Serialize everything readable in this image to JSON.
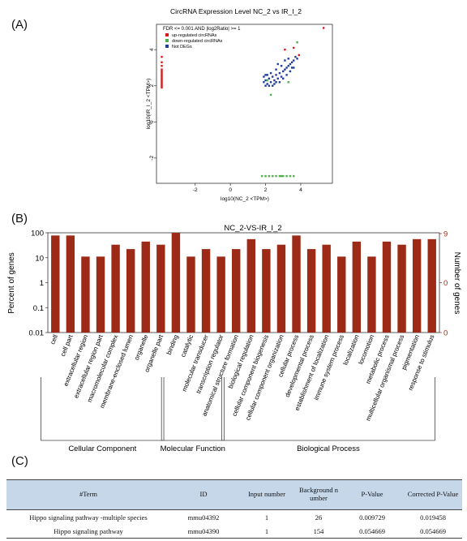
{
  "panels": {
    "a": "(A)",
    "b": "(B)",
    "c": "(C)"
  },
  "chart_data": [
    {
      "type": "scatter",
      "title": "CircRNA Expression Level NC_2 vs IR_I_2",
      "xlabel": "log10(NC_2 <TPM>)",
      "ylabel": "log10(IR_I_2 <TPM>)",
      "xlim": [
        -4.2,
        5.8
      ],
      "ylim": [
        -3.4,
        5.4
      ],
      "xticks": [
        -2,
        0,
        2,
        4
      ],
      "yticks": [
        -2,
        0,
        2,
        4
      ],
      "legend_title": "FDR <= 0.001 AND |log2Ratio| >= 1",
      "legend_position": "top-left",
      "series": [
        {
          "name": "up-regulated circRNAs",
          "color": "#d7191c",
          "points": [
            [
              -3.9,
              3.1
            ],
            [
              -3.9,
              2.9
            ],
            [
              -3.9,
              2.6
            ],
            [
              -3.9,
              2.4
            ],
            [
              -3.9,
              2.2
            ],
            [
              -3.9,
              2.0
            ],
            [
              -3.9,
              2.8
            ],
            [
              -3.9,
              3.3
            ],
            [
              -3.9,
              2.1
            ],
            [
              -3.9,
              2.5
            ],
            [
              -3.9,
              1.9
            ],
            [
              -3.9,
              2.7
            ],
            [
              -3.9,
              3.6
            ],
            [
              -3.9,
              2.3
            ],
            [
              5.3,
              5.2
            ],
            [
              3.6,
              4.1
            ],
            [
              3.1,
              4.0
            ],
            [
              3.9,
              3.7
            ]
          ]
        },
        {
          "name": "down-regulated circRNAs",
          "color": "#4daf4a",
          "points": [
            [
              1.8,
              -3.0
            ],
            [
              2.2,
              -3.0
            ],
            [
              2.6,
              -3.0
            ],
            [
              2.9,
              -3.0
            ],
            [
              3.2,
              -3.0
            ],
            [
              3.6,
              -3.0
            ],
            [
              2.4,
              -3.0
            ],
            [
              3.0,
              -3.0
            ],
            [
              3.4,
              -3.0
            ],
            [
              2.0,
              -3.0
            ],
            [
              2.8,
              -3.0
            ],
            [
              3.8,
              4.4
            ],
            [
              2.3,
              1.5
            ],
            [
              3.3,
              2.2
            ],
            [
              2.1,
              2.3
            ]
          ]
        },
        {
          "name": "Not DEGs",
          "color": "#1f3e9c",
          "points": [
            [
              1.9,
              2.2
            ],
            [
              2.0,
              2.3
            ],
            [
              2.1,
              2.1
            ],
            [
              2.2,
              2.4
            ],
            [
              2.3,
              2.2
            ],
            [
              2.4,
              2.5
            ],
            [
              2.5,
              2.3
            ],
            [
              2.6,
              2.6
            ],
            [
              2.7,
              2.4
            ],
            [
              2.8,
              2.7
            ],
            [
              2.9,
              2.5
            ],
            [
              3.0,
              2.8
            ],
            [
              3.1,
              2.9
            ],
            [
              3.2,
              3.0
            ],
            [
              3.3,
              3.1
            ],
            [
              3.4,
              3.2
            ],
            [
              3.5,
              3.3
            ],
            [
              3.6,
              3.4
            ],
            [
              3.7,
              3.6
            ],
            [
              3.2,
              2.6
            ],
            [
              2.6,
              2.9
            ],
            [
              2.9,
              3.1
            ],
            [
              3.4,
              2.8
            ],
            [
              2.4,
              2.0
            ],
            [
              2.2,
              2.0
            ],
            [
              2.0,
              2.0
            ],
            [
              1.9,
              2.5
            ],
            [
              2.1,
              2.6
            ],
            [
              2.5,
              2.1
            ],
            [
              2.8,
              2.2
            ],
            [
              3.0,
              2.4
            ],
            [
              3.5,
              3.0
            ],
            [
              3.8,
              3.5
            ],
            [
              2.7,
              3.2
            ],
            [
              3.1,
              3.4
            ],
            [
              2.3,
              2.7
            ],
            [
              3.6,
              3.0
            ],
            [
              2.0,
              2.6
            ],
            [
              3.3,
              3.5
            ],
            [
              2.6,
              2.2
            ]
          ]
        }
      ]
    },
    {
      "type": "bar",
      "title": "NC_2-VS-IR_I_2",
      "ylabel": "Percent of genes",
      "y2label": "Number of genes",
      "yscale": "log",
      "yticks": [
        "100",
        "10",
        "1",
        "0.1",
        "0.01"
      ],
      "y2ticks": [
        "9",
        "0",
        "0"
      ],
      "bar_color": "#9c2a17",
      "categories": [
        "cell",
        "cell part",
        "extracellular region",
        "extracellular region part",
        "macromolecular complex",
        "membrane-enclosed lumen",
        "organelle",
        "organelle part",
        "binding",
        "catalytic",
        "molecular transducer",
        "transcription regulator",
        "anatomical structure formation",
        "biological regulation",
        "cellular component biogenesis",
        "cellular component organization",
        "cellular process",
        "developmental process",
        "establishment of localization",
        "immune system process",
        "localization",
        "locomotion",
        "metabolic process",
        "multicellular organismal process",
        "pigmentation",
        "response to stimulus"
      ],
      "values": [
        77.8,
        77.8,
        11.1,
        11.1,
        33.3,
        22.2,
        44.4,
        33.3,
        100,
        11.1,
        22.2,
        11.1,
        22.2,
        55.6,
        22.2,
        33.3,
        77.8,
        22.2,
        33.3,
        11.1,
        44.4,
        11.1,
        44.4,
        33.3,
        55.6,
        55.6
      ],
      "groups": [
        {
          "name": "Cellular Component",
          "count": 8
        },
        {
          "name": "Molecular Function",
          "count": 4
        },
        {
          "name": "Biological Process",
          "count": 14
        }
      ]
    }
  ],
  "table": {
    "headers": [
      "#Term",
      "ID",
      "Input number",
      "Background number",
      "P-Value",
      "Corrected P-Value"
    ],
    "rows": [
      [
        "Hippo signaling pathway -multiple species",
        "mmu04392",
        "1",
        "26",
        "0.009729",
        "0.019458"
      ],
      [
        "Hippo signaling pathway",
        "mmu04390",
        "1",
        "154",
        "0.054669",
        "0.054669"
      ]
    ]
  }
}
